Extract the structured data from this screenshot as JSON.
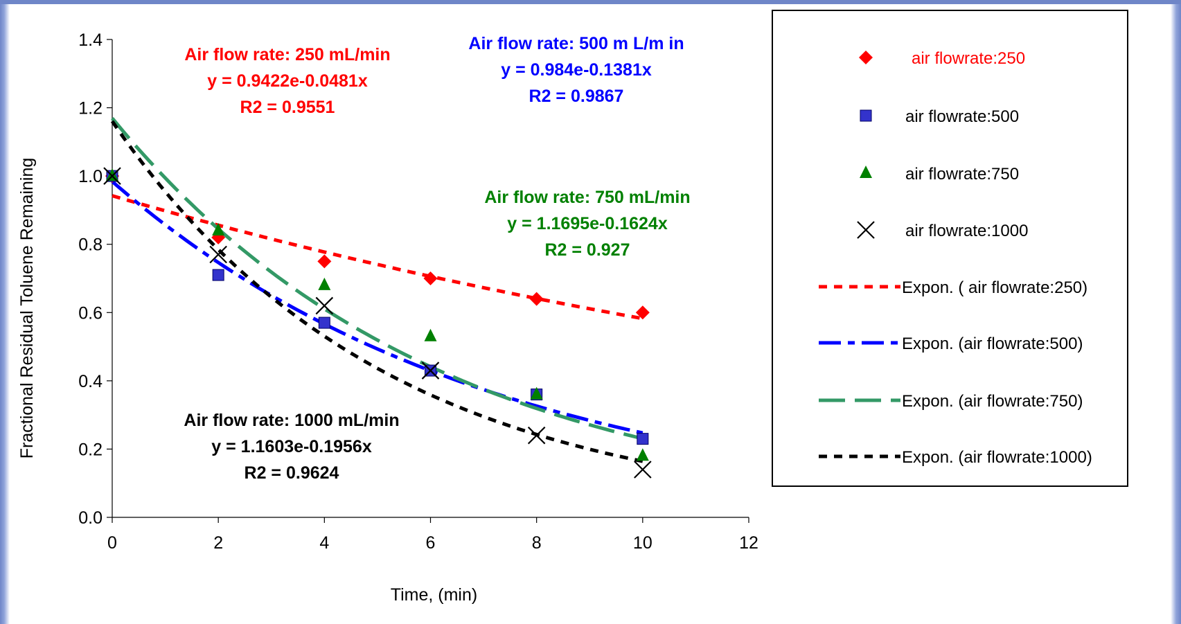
{
  "chart_data": {
    "type": "scatter",
    "xlabel": "Time, (min)",
    "ylabel": "Fractional Residual Toluene Remaining",
    "xlim": [
      0,
      12
    ],
    "ylim": [
      0,
      1.4
    ],
    "xticks": [
      "0",
      "2",
      "4",
      "6",
      "8",
      "10",
      "12"
    ],
    "yticks": [
      "0.0",
      "0.2",
      "0.4",
      "0.6",
      "0.8",
      "1.0",
      "1.2",
      "1.4"
    ],
    "grid": false,
    "legend_position": "right",
    "series": [
      {
        "name": "air flowrate:250",
        "color": "#ff0000",
        "marker": "diamond",
        "x": [
          0,
          2,
          4,
          6,
          8,
          10
        ],
        "y": [
          1.0,
          0.82,
          0.75,
          0.7,
          0.64,
          0.6
        ]
      },
      {
        "name": "air flowrate:500",
        "color": "#3333cc",
        "marker": "square",
        "x": [
          0,
          2,
          4,
          6,
          8,
          10
        ],
        "y": [
          1.0,
          0.71,
          0.57,
          0.43,
          0.36,
          0.23
        ]
      },
      {
        "name": "air flowrate:750",
        "color": "#008000",
        "marker": "triangle",
        "x": [
          0,
          2,
          4,
          6,
          8,
          10
        ],
        "y": [
          1.0,
          0.84,
          0.68,
          0.53,
          0.36,
          0.18
        ]
      },
      {
        "name": "air flowrate:1000",
        "color": "#000000",
        "marker": "x",
        "x": [
          0,
          2,
          4,
          6,
          8,
          10
        ],
        "y": [
          1.0,
          0.77,
          0.62,
          0.43,
          0.24,
          0.14
        ]
      }
    ],
    "trendlines": [
      {
        "name": "Expon. ( air flowrate:250)",
        "color": "#ff0000",
        "a": 0.9422,
        "b": -0.0481,
        "dash": "short"
      },
      {
        "name": "Expon. (air flowrate:500)",
        "color": "#0000ff",
        "a": 0.984,
        "b": -0.1381,
        "dash": "longshort"
      },
      {
        "name": "Expon. (air flowrate:750)",
        "color": "#339966",
        "a": 1.1695,
        "b": -0.1624,
        "dash": "long"
      },
      {
        "name": "Expon. (air flowrate:1000)",
        "color": "#000000",
        "a": 1.1603,
        "b": -0.1956,
        "dash": "short"
      }
    ],
    "annotations": [
      {
        "color": "#ff0000",
        "lines": [
          "Air flow rate: 250 mL/min",
          "y = 0.9422e-0.0481x",
          "R2 = 0.9551"
        ]
      },
      {
        "color": "#0000ff",
        "lines": [
          "Air flow  rate: 500 m L/m in",
          "y = 0.984e-0.1381x",
          "R2 = 0.9867"
        ]
      },
      {
        "color": "#008000",
        "lines": [
          "Air flow rate: 750 mL/min",
          "y = 1.1695e-0.1624x",
          "R2 = 0.927"
        ]
      },
      {
        "color": "#000000",
        "lines": [
          "Air flow rate: 1000 mL/min",
          "y = 1.1603e-0.1956x",
          "R2 = 0.9624"
        ]
      }
    ]
  }
}
